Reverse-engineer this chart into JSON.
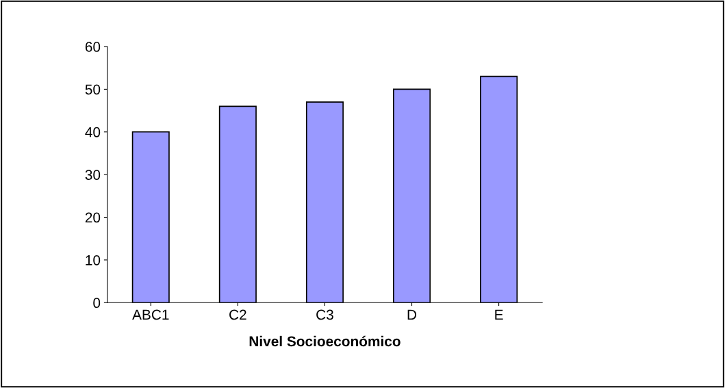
{
  "chart_data": {
    "type": "bar",
    "xlabel": "Nivel Socioeconómico",
    "categories": [
      "ABC1",
      "C2",
      "C3",
      "D",
      "E"
    ],
    "values": [
      40,
      46,
      47,
      50,
      53
    ],
    "color": "#9999ff",
    "ylim": [
      0,
      60
    ],
    "yticks": [
      0,
      10,
      20,
      30,
      40,
      50,
      60
    ],
    "grid": false,
    "legend": false
  }
}
